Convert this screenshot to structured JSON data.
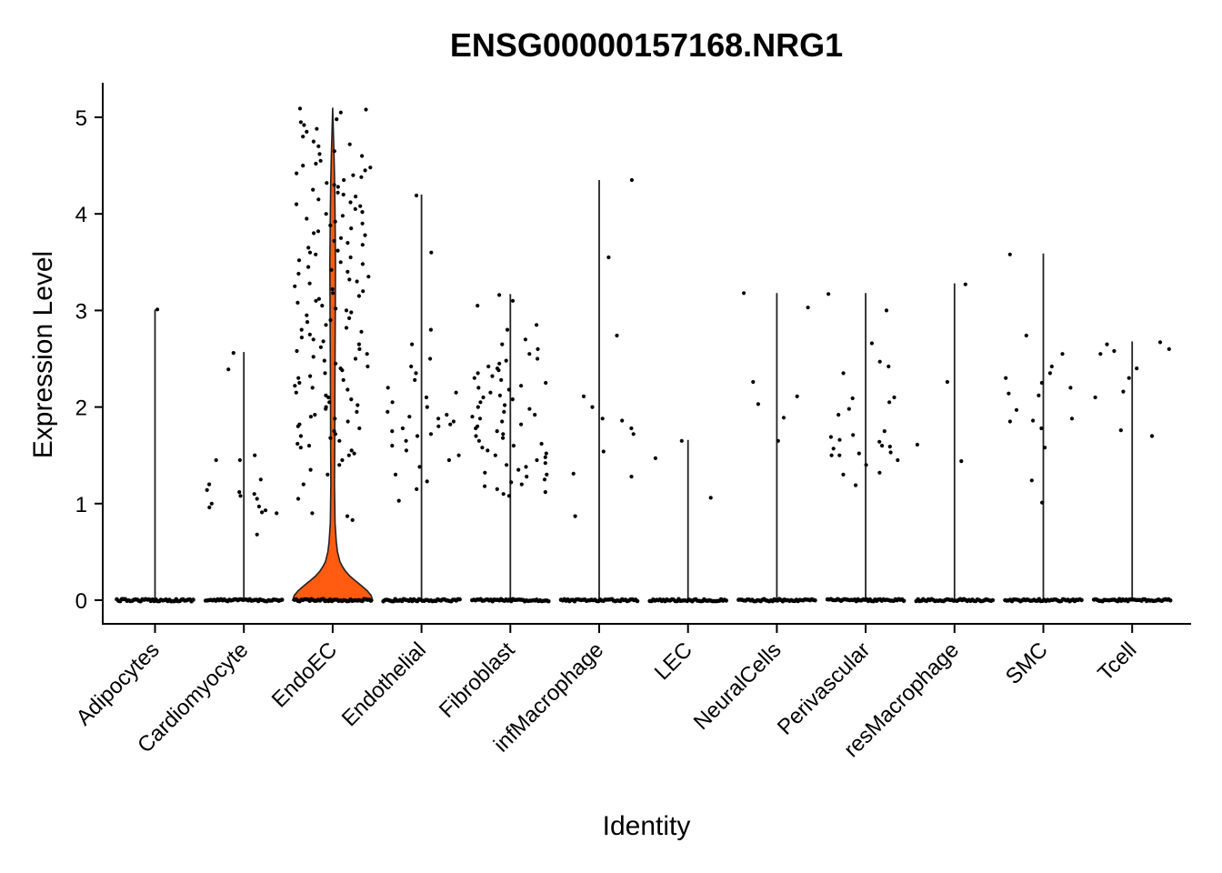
{
  "chart_data": {
    "type": "violin",
    "title": "ENSG00000157168.NRG1",
    "xlabel": "Identity",
    "ylabel": "Expression Level",
    "ylim": [
      -0.25,
      5.4
    ],
    "yticks": [
      0,
      1,
      2,
      3,
      4,
      5
    ],
    "grid": false,
    "legend": "none",
    "violin_color": "#ff5b11",
    "categories": [
      "Adipocytes",
      "Cardiomyocyte",
      "EndoEC",
      "Endothelial",
      "Fibroblast",
      "infMacrophage",
      "LEC",
      "NeuralCells",
      "Perivascular",
      "resMacrophage",
      "SMC",
      "Tcell"
    ],
    "series": [
      {
        "category": "Adipocytes",
        "max": 3.01,
        "filled": false,
        "points": [
          3.01
        ]
      },
      {
        "category": "Cardiomyocyte",
        "max": 2.57,
        "filled": false,
        "points": [
          2.56,
          2.39,
          1.5,
          1.45,
          1.45,
          1.25,
          1.2,
          1.14,
          1.12,
          1.1,
          1.08,
          1.05,
          1.0,
          0.97,
          0.96,
          0.93,
          0.91,
          0.9,
          0.68
        ]
      },
      {
        "category": "EndoEC",
        "max": 5.1,
        "filled": true,
        "violin_profile": [
          [
            0,
            1.0
          ],
          [
            0.05,
            0.96
          ],
          [
            0.1,
            0.86
          ],
          [
            0.15,
            0.72
          ],
          [
            0.2,
            0.57
          ],
          [
            0.25,
            0.43
          ],
          [
            0.3,
            0.32
          ],
          [
            0.35,
            0.24
          ],
          [
            0.4,
            0.18
          ],
          [
            0.5,
            0.12
          ],
          [
            0.6,
            0.09
          ],
          [
            0.8,
            0.06
          ],
          [
            1.2,
            0.045
          ],
          [
            1.5,
            0.05
          ],
          [
            2.0,
            0.055
          ],
          [
            2.5,
            0.06
          ],
          [
            3.0,
            0.065
          ],
          [
            3.5,
            0.07
          ],
          [
            4.0,
            0.06
          ],
          [
            4.3,
            0.05
          ],
          [
            4.6,
            0.035
          ],
          [
            4.8,
            0.02
          ],
          [
            5.1,
            0.0
          ]
        ],
        "points": [
          5.09,
          5.08,
          5.05,
          4.98,
          4.95,
          4.92,
          4.88,
          4.85,
          4.8,
          4.75,
          4.72,
          4.7,
          4.65,
          4.62,
          4.6,
          4.55,
          4.52,
          4.5,
          4.48,
          4.45,
          4.42,
          4.4,
          4.38,
          4.35,
          4.32,
          4.3,
          4.28,
          4.25,
          4.22,
          4.2,
          4.18,
          4.15,
          4.12,
          4.1,
          4.08,
          4.05,
          4.02,
          4.0,
          3.98,
          3.95,
          3.92,
          3.9,
          3.88,
          3.85,
          3.82,
          3.8,
          3.78,
          3.75,
          3.72,
          3.7,
          3.68,
          3.65,
          3.62,
          3.6,
          3.58,
          3.55,
          3.52,
          3.5,
          3.48,
          3.45,
          3.42,
          3.4,
          3.38,
          3.35,
          3.32,
          3.3,
          3.28,
          3.25,
          3.22,
          3.2,
          3.18,
          3.15,
          3.12,
          3.1,
          3.08,
          3.05,
          3.02,
          3.0,
          2.98,
          2.95,
          2.92,
          2.9,
          2.88,
          2.85,
          2.82,
          2.8,
          2.78,
          2.75,
          2.72,
          2.7,
          2.68,
          2.65,
          2.62,
          2.6,
          2.58,
          2.55,
          2.52,
          2.5,
          2.48,
          2.45,
          2.42,
          2.4,
          2.38,
          2.35,
          2.32,
          2.3,
          2.28,
          2.25,
          2.22,
          2.2,
          2.18,
          2.15,
          2.12,
          2.1,
          2.08,
          2.05,
          2.02,
          2.0,
          1.98,
          1.95,
          1.92,
          1.9,
          1.88,
          1.85,
          1.82,
          1.8,
          1.78,
          1.75,
          1.72,
          1.7,
          1.68,
          1.65,
          1.62,
          1.6,
          1.58,
          1.55,
          1.52,
          1.5,
          1.45,
          1.4,
          1.35,
          1.3,
          1.2,
          1.05,
          0.9,
          0.87,
          0.83
        ]
      },
      {
        "category": "Endothelial",
        "max": 4.2,
        "filled": false,
        "points": [
          4.19,
          3.6,
          2.8,
          2.65,
          2.5,
          2.42,
          2.35,
          2.28,
          2.2,
          2.15,
          2.1,
          2.05,
          2.0,
          1.95,
          1.92,
          1.9,
          1.88,
          1.85,
          1.82,
          1.8,
          1.78,
          1.75,
          1.72,
          1.7,
          1.65,
          1.6,
          1.55,
          1.5,
          1.45,
          1.38,
          1.3,
          1.23,
          1.15,
          1.03
        ]
      },
      {
        "category": "Fibroblast",
        "max": 3.17,
        "filled": false,
        "points": [
          3.16,
          3.1,
          3.05,
          2.85,
          2.8,
          2.7,
          2.65,
          2.6,
          2.55,
          2.5,
          2.48,
          2.45,
          2.42,
          2.4,
          2.38,
          2.35,
          2.32,
          2.3,
          2.28,
          2.25,
          2.22,
          2.2,
          2.18,
          2.15,
          2.12,
          2.1,
          2.08,
          2.05,
          2.02,
          2.0,
          1.98,
          1.95,
          1.92,
          1.9,
          1.88,
          1.85,
          1.82,
          1.8,
          1.78,
          1.75,
          1.72,
          1.7,
          1.68,
          1.65,
          1.62,
          1.6,
          1.58,
          1.55,
          1.52,
          1.5,
          1.48,
          1.45,
          1.42,
          1.4,
          1.38,
          1.35,
          1.32,
          1.3,
          1.28,
          1.25,
          1.22,
          1.2,
          1.18,
          1.15,
          1.12,
          1.1,
          1.08
        ]
      },
      {
        "category": "infMacrophage",
        "max": 4.35,
        "filled": false,
        "points": [
          4.35,
          3.55,
          2.74,
          2.11,
          2.0,
          1.88,
          1.86,
          1.78,
          1.72,
          1.54,
          1.31,
          1.28,
          0.87
        ]
      },
      {
        "category": "LEC",
        "max": 1.66,
        "filled": false,
        "points": [
          1.65,
          1.47,
          1.06
        ]
      },
      {
        "category": "NeuralCells",
        "max": 3.18,
        "filled": false,
        "points": [
          3.18,
          3.03,
          2.26,
          2.11,
          2.03,
          1.89,
          1.65
        ]
      },
      {
        "category": "Perivascular",
        "max": 3.18,
        "filled": false,
        "points": [
          3.17,
          3.0,
          2.66,
          2.47,
          2.42,
          2.35,
          2.1,
          2.09,
          2.05,
          1.98,
          1.92,
          1.75,
          1.71,
          1.69,
          1.66,
          1.64,
          1.6,
          1.59,
          1.57,
          1.53,
          1.52,
          1.5,
          1.5,
          1.45,
          1.4,
          1.32,
          1.3,
          1.19
        ]
      },
      {
        "category": "resMacrophage",
        "max": 3.28,
        "filled": false,
        "points": [
          3.27,
          2.26,
          1.61,
          1.44
        ]
      },
      {
        "category": "SMC",
        "max": 3.59,
        "filled": false,
        "points": [
          3.58,
          2.74,
          2.55,
          2.42,
          2.35,
          2.3,
          2.25,
          2.2,
          2.14,
          2.12,
          1.97,
          1.88,
          1.86,
          1.85,
          1.78,
          1.58,
          1.24,
          1.01
        ]
      },
      {
        "category": "Tcell",
        "max": 2.68,
        "filled": false,
        "points": [
          2.67,
          2.65,
          2.6,
          2.58,
          2.55,
          2.4,
          2.3,
          2.16,
          2.1,
          1.76,
          1.7
        ]
      }
    ]
  }
}
